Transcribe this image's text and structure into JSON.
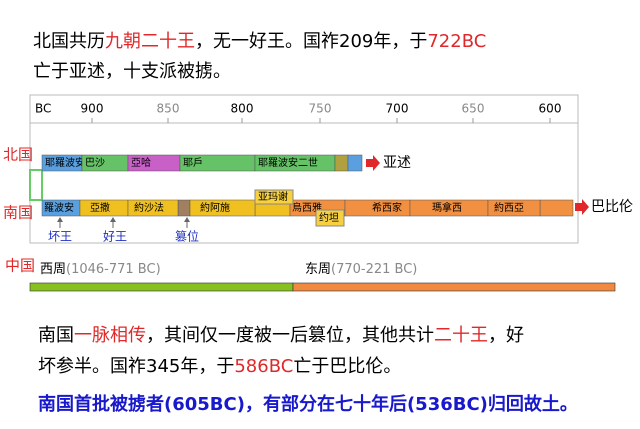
{
  "intro": {
    "line1": [
      "北国共历",
      "九朝二十王",
      "，无一好王。国祚209年，于",
      "722BC"
    ],
    "line2": "亡于亚述，十支派被掳。"
  },
  "timeline": {
    "axis_labels": [
      "BC",
      "900",
      "850",
      "800",
      "750",
      "700",
      "650",
      "600"
    ],
    "north": {
      "label": "北国",
      "kings": [
        "耶羅波安",
        "巴沙",
        "亞哈",
        "耶戶",
        "耶羅波安二世"
      ],
      "end": "亚述"
    },
    "south": {
      "label": "南国",
      "kings": [
        "羅波安",
        "亞撒",
        "約沙法",
        "約阿施",
        "亚玛谢",
        "烏西雅",
        "约坦",
        "希西家",
        "瑪拿西",
        "約西亞"
      ],
      "end": "巴比伦",
      "notes": [
        "坏王",
        "好王",
        "篡位"
      ]
    },
    "china": {
      "label": "中国",
      "periods": [
        {
          "name": "西周",
          "range": "(1046-771 BC)"
        },
        {
          "name": "东周",
          "range": "(770-221 BC)"
        }
      ]
    }
  },
  "summary": {
    "line1": [
      "南国",
      "一脉相传",
      "，其间仅一度被一后篡位，其他共计",
      "二十王",
      "，好"
    ],
    "line2": [
      "坏参半。国祚345年，于",
      "586BC",
      "亡于巴比伦。"
    ],
    "line3": "南国首批被掳者(605BC)，有部分在七十年后(536BC)归回故土。"
  }
}
